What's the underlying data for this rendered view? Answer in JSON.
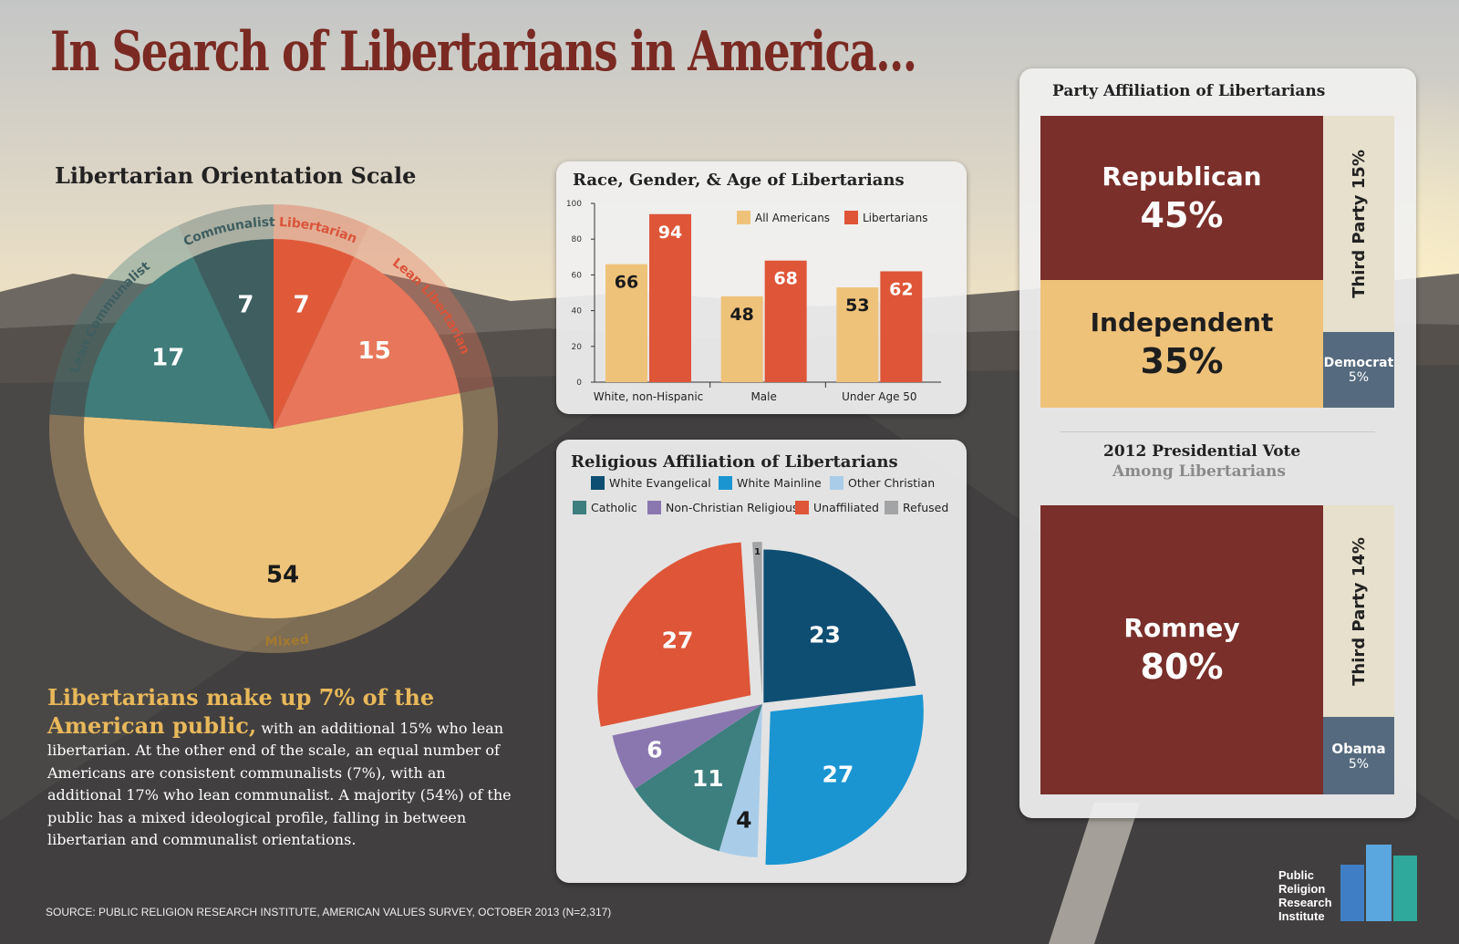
{
  "title": "In Search of  Libertarians in America...",
  "colors": {
    "brand_red": "#7a2a22",
    "libertarian": "#e05a3a",
    "lean_libertarian": "#e7765a",
    "mixed": "#eec47b",
    "lean_communalist": "#3f7c7a",
    "communalist": "#3e5e60",
    "all_americans": "#efc27a",
    "libertarians_bar": "#de5537",
    "democrat_tile": "#556a7e",
    "third_party_tile": "#e6e0cc"
  },
  "orientation": {
    "title": "Libertarian Orientation Scale"
  },
  "race_chart": {
    "title": "Race, Gender, & Age of Libertarians"
  },
  "religion": {
    "title": "Religious Affiliation of Libertarians"
  },
  "party": {
    "title": "Party Affiliation of Libertarians",
    "republican_label": "Republican",
    "republican_value": "45%",
    "independent_label": "Independent",
    "independent_value": "35%",
    "third_label": "Third Party 15%",
    "democrat_label": "Democrat",
    "democrat_value": "5%"
  },
  "vote": {
    "title": "2012 Presidential Vote",
    "subtitle": "Among Libertarians",
    "romney_label": "Romney",
    "romney_value": "80%",
    "third_label": "Third Party 14%",
    "obama_label": "Obama",
    "obama_value": "5%"
  },
  "text": {
    "lead": "Libertarians make up 7% of the American public,",
    "body": " with an additional 15% who lean libertarian. At the other end of the scale, an equal number of Americans are consistent communalists (7%), with an additional 17% who lean communalist. A majority (54%) of the public has a mixed ideological profile, falling in between libertarian and communalist orientations."
  },
  "source": "SOURCE: PUBLIC RELIGION RESEARCH INSTITUTE, AMERICAN VALUES SURVEY, OCTOBER 2013 (N=2,317)",
  "logo": {
    "line1": "Public",
    "line2": "Religion",
    "line3": "Research",
    "line4": "Institute"
  },
  "chart_data": [
    {
      "type": "pie",
      "title": "Libertarian Orientation Scale",
      "categories": [
        "Libertarian",
        "Lean Libertarian",
        "Mixed",
        "Lean Communalist",
        "Communalist"
      ],
      "values": [
        7,
        15,
        54,
        17,
        7
      ],
      "colors": [
        "#e05a3a",
        "#e7765a",
        "#eec47b",
        "#3f7c7a",
        "#3e5e60"
      ]
    },
    {
      "type": "bar",
      "title": "Race, Gender, & Age of Libertarians",
      "categories": [
        "White, non-Hispanic",
        "Male",
        "Under Age 50"
      ],
      "series": [
        {
          "name": "All Americans",
          "values": [
            66,
            48,
            53
          ],
          "color": "#efc27a"
        },
        {
          "name": "Libertarians",
          "values": [
            94,
            68,
            62
          ],
          "color": "#de5537"
        }
      ],
      "ylim": [
        0,
        100
      ],
      "yticks": [
        0,
        20,
        40,
        60,
        80,
        100
      ],
      "legend": "top-right"
    },
    {
      "type": "pie",
      "title": "Religious Affiliation of Libertarians",
      "categories": [
        "White Evangelical",
        "White Mainline",
        "Other Christian",
        "Catholic",
        "Non-Christian Religious",
        "Unaffiliated",
        "Refused"
      ],
      "values": [
        23,
        27,
        4,
        11,
        6,
        27,
        1
      ],
      "colors": [
        "#0e4e72",
        "#1a95d2",
        "#a9cce8",
        "#3c7f7e",
        "#8b77b0",
        "#de5537",
        "#a2a4a6"
      ],
      "legend": "top"
    },
    {
      "type": "table",
      "title": "Party Affiliation of Libertarians",
      "categories": [
        "Republican",
        "Independent",
        "Third Party",
        "Democrat"
      ],
      "values": [
        45,
        35,
        15,
        5
      ]
    },
    {
      "type": "table",
      "title": "2012 Presidential Vote Among Libertarians",
      "categories": [
        "Romney",
        "Third Party",
        "Obama"
      ],
      "values": [
        80,
        14,
        5
      ]
    }
  ]
}
